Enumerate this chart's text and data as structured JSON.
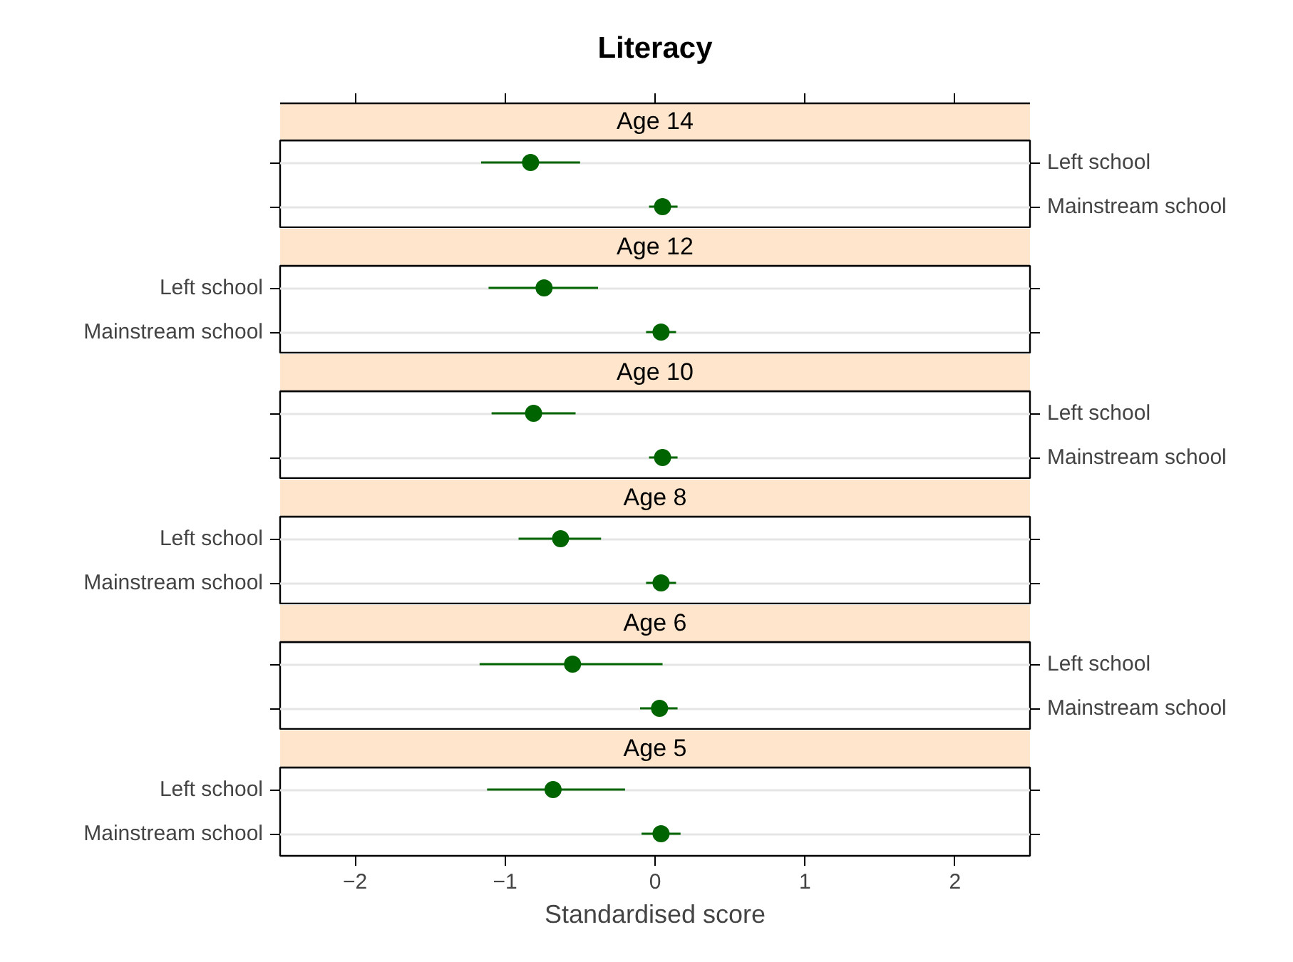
{
  "chart_data": [
    {
      "type": "scatter",
      "orientation": "horizontal",
      "title": "Literacy",
      "subtitle": "Age 14",
      "categories": [
        "Left school",
        "Mainstream school"
      ],
      "values": [
        -0.83,
        0.05
      ],
      "errors": [
        [
          -1.16,
          -0.5
        ],
        [
          -0.04,
          0.15
        ]
      ],
      "color": "#006400",
      "marker": "circle",
      "grid": "y",
      "xlim": [
        -2.5,
        2.5
      ],
      "tick_labels": "y"
    },
    {
      "type": "scatter",
      "orientation": "horizontal",
      "subtitle": "Age 12",
      "categories": [
        "Left school",
        "Mainstream school"
      ],
      "values": [
        -0.74,
        0.04
      ],
      "errors": [
        [
          -1.11,
          -0.38
        ],
        [
          -0.06,
          0.14
        ]
      ],
      "color": "#006400",
      "marker": "circle",
      "grid": "y",
      "xlim": [
        -2.5,
        2.5
      ],
      "tick_labels": "y"
    },
    {
      "type": "scatter",
      "orientation": "horizontal",
      "subtitle": "Age 10",
      "categories": [
        "Left school",
        "Mainstream school"
      ],
      "values": [
        -0.81,
        0.05
      ],
      "errors": [
        [
          -1.09,
          -0.53
        ],
        [
          -0.04,
          0.15
        ]
      ],
      "color": "#006400",
      "marker": "circle",
      "grid": "y",
      "xlim": [
        -2.5,
        2.5
      ],
      "tick_labels": "y"
    },
    {
      "type": "scatter",
      "orientation": "horizontal",
      "subtitle": "Age 8",
      "categories": [
        "Left school",
        "Mainstream school"
      ],
      "values": [
        -0.63,
        0.04
      ],
      "errors": [
        [
          -0.91,
          -0.36
        ],
        [
          -0.06,
          0.14
        ]
      ],
      "color": "#006400",
      "marker": "circle",
      "grid": "y",
      "xlim": [
        -2.5,
        2.5
      ],
      "tick_labels": "y"
    },
    {
      "type": "scatter",
      "orientation": "horizontal",
      "subtitle": "Age 6",
      "categories": [
        "Left school",
        "Mainstream school"
      ],
      "values": [
        -0.55,
        0.03
      ],
      "errors": [
        [
          -1.17,
          0.05
        ],
        [
          -0.1,
          0.15
        ]
      ],
      "color": "#006400",
      "marker": "circle",
      "grid": "y",
      "xlim": [
        -2.5,
        2.5
      ],
      "tick_labels": "y"
    },
    {
      "type": "scatter",
      "orientation": "horizontal",
      "subtitle": "Age 5",
      "xlabel": "Standardised score",
      "categories": [
        "Left school",
        "Mainstream school"
      ],
      "values": [
        -0.68,
        0.04
      ],
      "errors": [
        [
          -1.12,
          -0.2
        ],
        [
          -0.09,
          0.17
        ]
      ],
      "color": "#006400",
      "marker": "circle",
      "grid": "y",
      "xlim": [
        -2.5,
        2.5
      ],
      "xticks": [
        {
          "value": -2,
          "label": "−2"
        },
        {
          "value": -1,
          "label": "−1"
        },
        0,
        1,
        2
      ]
    }
  ]
}
